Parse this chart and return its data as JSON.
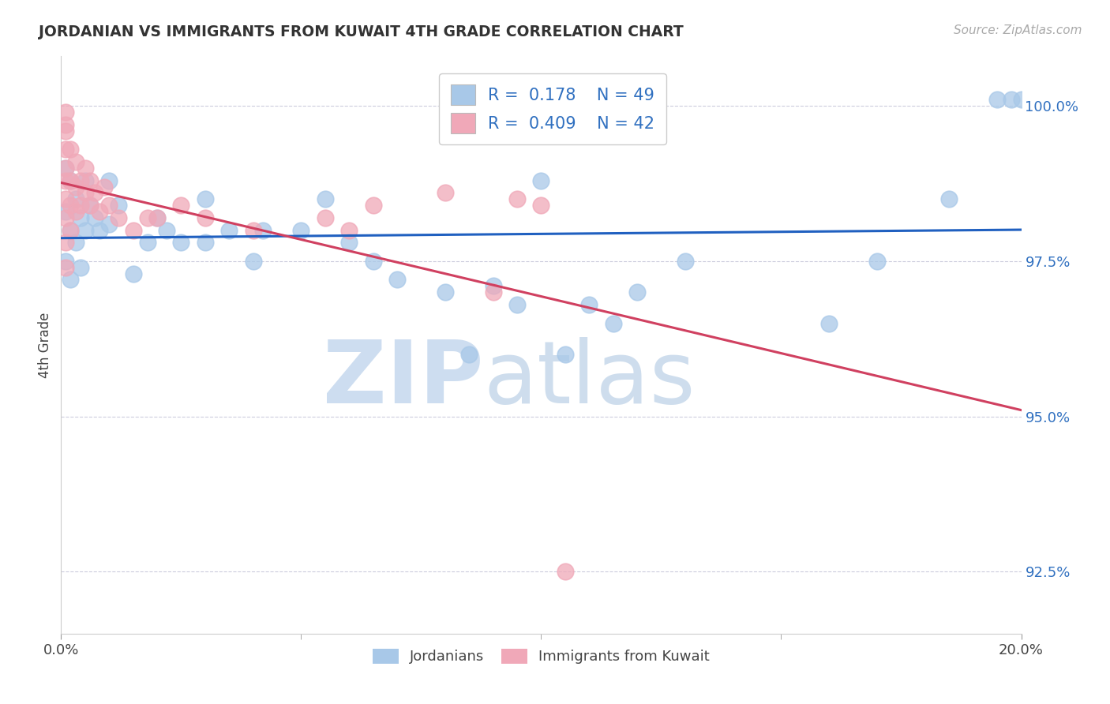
{
  "title": "JORDANIAN VS IMMIGRANTS FROM KUWAIT 4TH GRADE CORRELATION CHART",
  "source_text": "Source: ZipAtlas.com",
  "ylabel": "4th Grade",
  "xlim": [
    0.0,
    0.2
  ],
  "ylim": [
    0.915,
    1.008
  ],
  "ytick_vals": [
    0.925,
    0.95,
    0.975,
    1.0
  ],
  "ytick_labels": [
    "92.5%",
    "95.0%",
    "97.5%",
    "100.0%"
  ],
  "xtick_vals": [
    0.0,
    0.2
  ],
  "xtick_labels": [
    "0.0%",
    "20.0%"
  ],
  "R_blue": 0.178,
  "N_blue": 49,
  "R_pink": 0.409,
  "N_pink": 42,
  "legend_label_blue": "Jordanians",
  "legend_label_pink": "Immigrants from Kuwait",
  "blue_color": "#a8c8e8",
  "pink_color": "#f0a8b8",
  "blue_line_color": "#2060c0",
  "pink_line_color": "#d04060",
  "watermark_zip_color": "#c8d8ee",
  "watermark_atlas_color": "#b8cce0",
  "blue_x": [
    0.001,
    0.001,
    0.001,
    0.002,
    0.002,
    0.002,
    0.003,
    0.003,
    0.004,
    0.004,
    0.005,
    0.005,
    0.006,
    0.007,
    0.008,
    0.01,
    0.01,
    0.012,
    0.015,
    0.018,
    0.02,
    0.022,
    0.025,
    0.03,
    0.03,
    0.035,
    0.04,
    0.042,
    0.05,
    0.055,
    0.06,
    0.065,
    0.07,
    0.08,
    0.085,
    0.09,
    0.095,
    0.1,
    0.105,
    0.11,
    0.115,
    0.12,
    0.13,
    0.16,
    0.17,
    0.185,
    0.195,
    0.198,
    0.2
  ],
  "blue_y": [
    0.99,
    0.983,
    0.975,
    0.988,
    0.98,
    0.972,
    0.985,
    0.978,
    0.982,
    0.974,
    0.988,
    0.98,
    0.984,
    0.982,
    0.98,
    0.988,
    0.981,
    0.984,
    0.973,
    0.978,
    0.982,
    0.98,
    0.978,
    0.985,
    0.978,
    0.98,
    0.975,
    0.98,
    0.98,
    0.985,
    0.978,
    0.975,
    0.972,
    0.97,
    0.96,
    0.971,
    0.968,
    0.988,
    0.96,
    0.968,
    0.965,
    0.97,
    0.975,
    0.965,
    0.975,
    0.985,
    1.001,
    1.001,
    1.001
  ],
  "pink_x": [
    0.001,
    0.001,
    0.001,
    0.001,
    0.001,
    0.001,
    0.001,
    0.001,
    0.001,
    0.001,
    0.002,
    0.002,
    0.002,
    0.002,
    0.003,
    0.003,
    0.003,
    0.004,
    0.004,
    0.005,
    0.005,
    0.006,
    0.006,
    0.007,
    0.008,
    0.009,
    0.01,
    0.012,
    0.015,
    0.018,
    0.02,
    0.025,
    0.03,
    0.04,
    0.055,
    0.06,
    0.065,
    0.08,
    0.09,
    0.095,
    0.1,
    0.105
  ],
  "pink_y": [
    0.999,
    0.997,
    0.996,
    0.993,
    0.99,
    0.988,
    0.985,
    0.982,
    0.978,
    0.974,
    0.993,
    0.988,
    0.984,
    0.98,
    0.991,
    0.987,
    0.983,
    0.988,
    0.984,
    0.99,
    0.986,
    0.988,
    0.984,
    0.986,
    0.983,
    0.987,
    0.984,
    0.982,
    0.98,
    0.982,
    0.982,
    0.984,
    0.982,
    0.98,
    0.982,
    0.98,
    0.984,
    0.986,
    0.97,
    0.985,
    0.984,
    0.925
  ]
}
